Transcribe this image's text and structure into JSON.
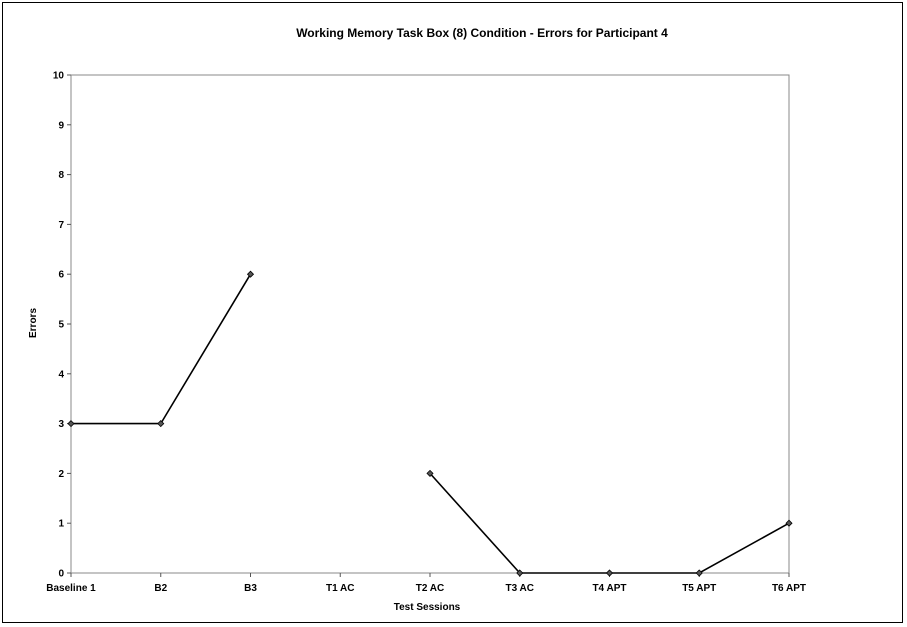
{
  "chart_data": {
    "type": "line",
    "title": "Working Memory Task Box (8) Condition - Errors for Participant 4",
    "xlabel": "Test Sessions",
    "ylabel": "Errors",
    "ylim": [
      0,
      10
    ],
    "yticks": [
      "0",
      "1",
      "2",
      "3",
      "4",
      "5",
      "6",
      "7",
      "8",
      "9",
      "10"
    ],
    "grid": false,
    "legend": "none",
    "categories": [
      "Baseline 1",
      "B2",
      "B3",
      "T1 AC",
      "T2 AC",
      "T3 AC",
      "T4 APT",
      "T5 APT",
      "T6 APT"
    ],
    "series": [
      {
        "values": [
          3,
          3,
          6,
          null,
          2,
          0,
          0,
          0,
          1
        ],
        "color": "#000000"
      }
    ]
  }
}
